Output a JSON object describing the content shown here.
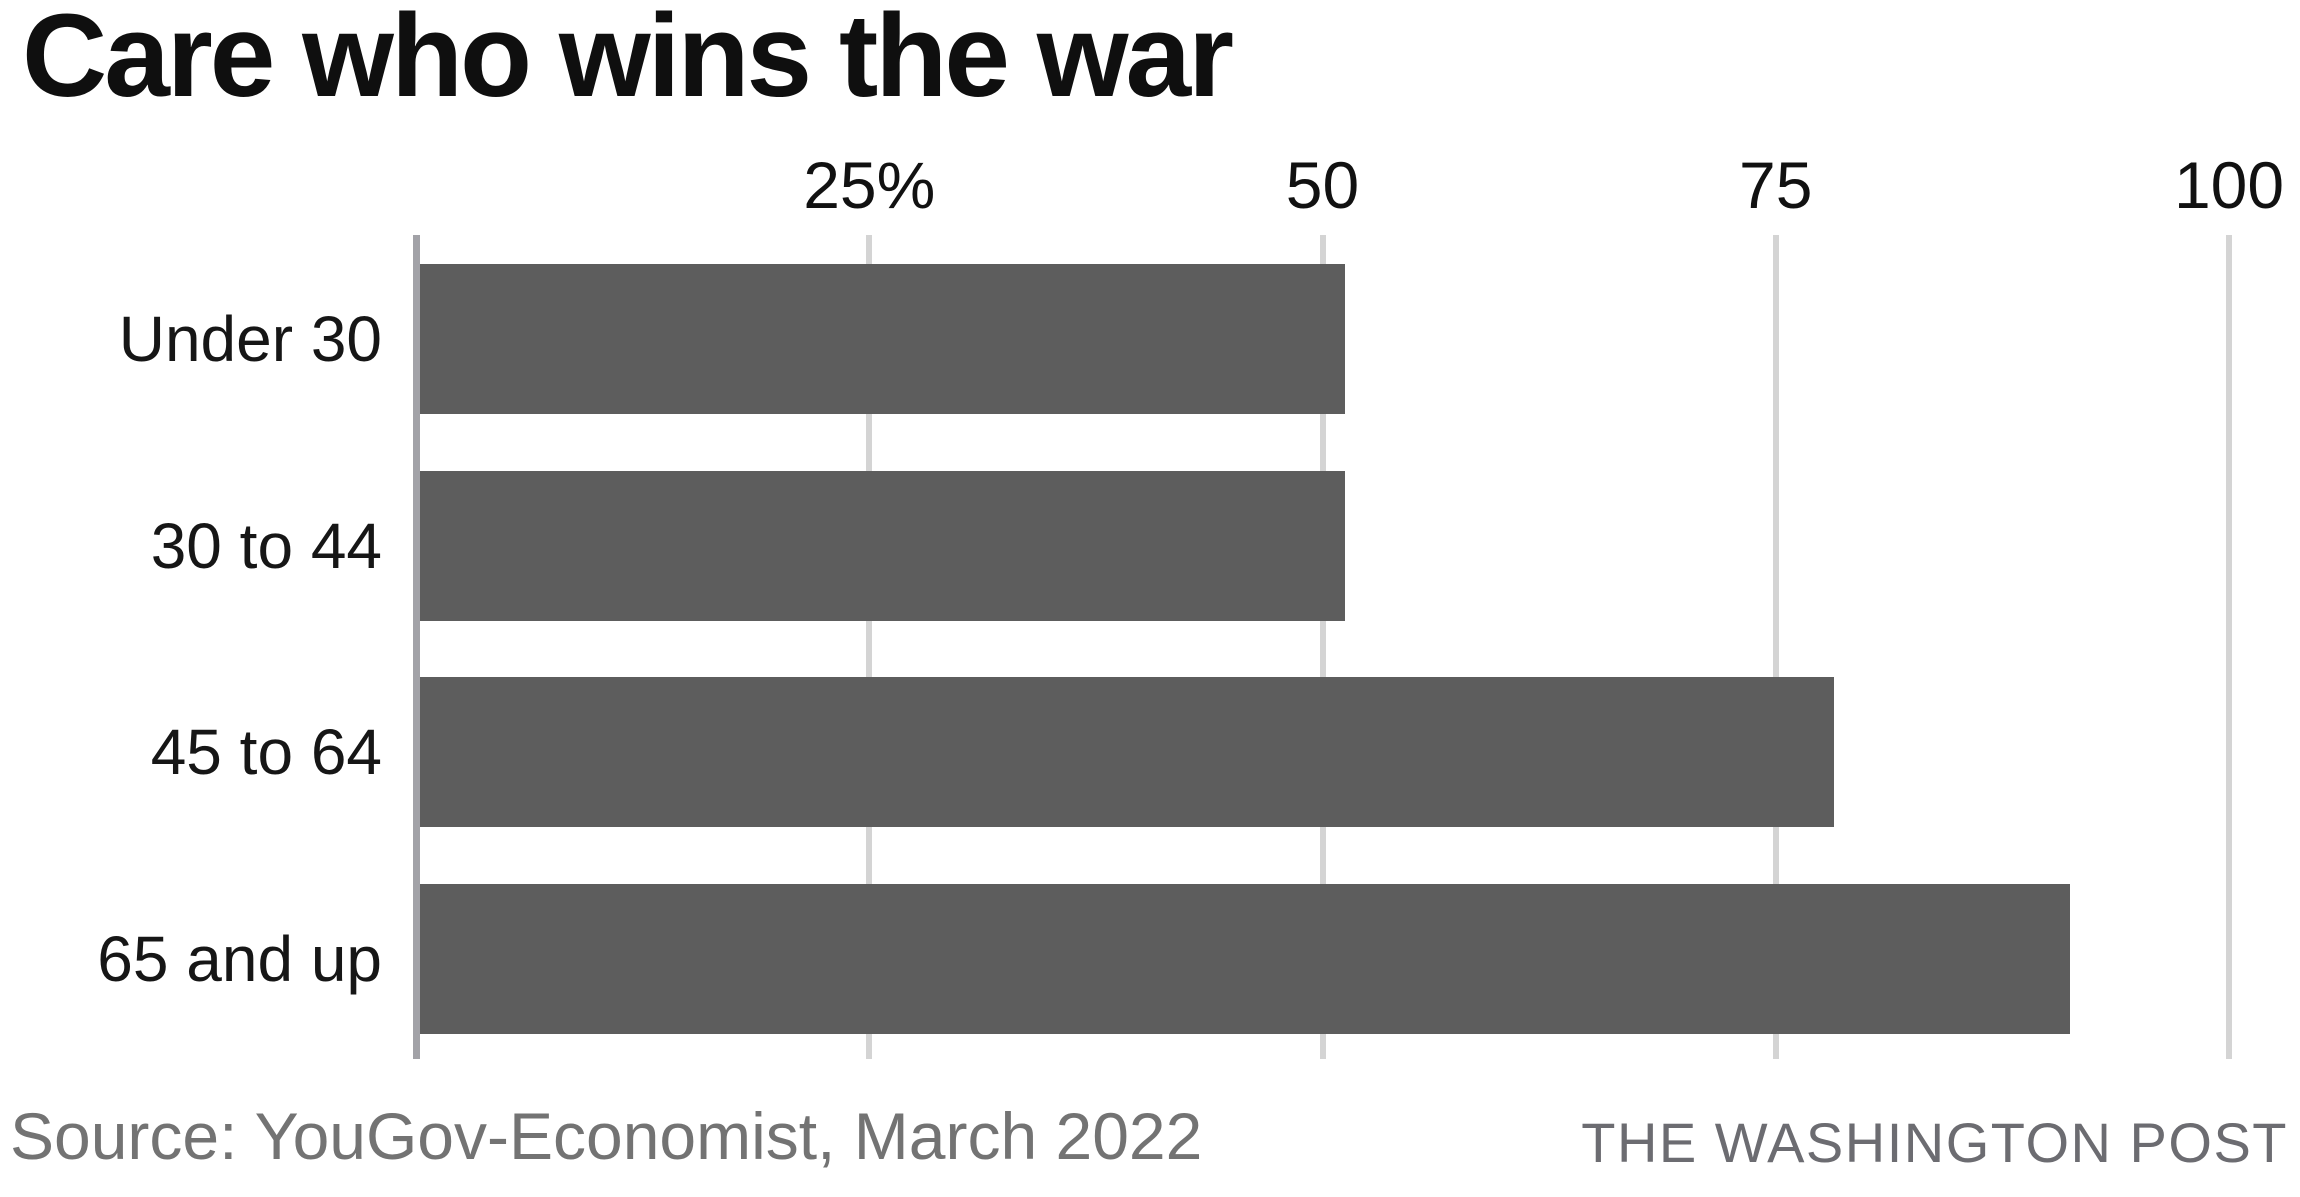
{
  "title": "Care who wins the war",
  "source": "Source: YouGov-Economist, March 2022",
  "attribution": "THE WASHINGTON POST",
  "colors": {
    "bar": "#5d5d5d",
    "axis_line": "#a2a2a7",
    "gridline": "#d4d4d4",
    "title_text": "#0f0f0f",
    "category_text": "#161616",
    "tick_text": "#111111",
    "source_text": "#737373",
    "attribution_text": "#6c6c71"
  },
  "chart_data": {
    "type": "bar",
    "orientation": "horizontal",
    "title": "Care who wins the war",
    "categories": [
      "Under 30",
      "30 to 44",
      "45 to 64",
      "65 and up"
    ],
    "values": [
      51,
      51,
      78,
      91
    ],
    "unit": "percent",
    "xlim": [
      0,
      100
    ],
    "x_ticks": [
      {
        "value": 25,
        "label": "25%"
      },
      {
        "value": 50,
        "label": "50"
      },
      {
        "value": 75,
        "label": "75"
      },
      {
        "value": 100,
        "label": "100"
      }
    ],
    "grid": "vertical gridlines at ticks, drawn behind bars",
    "legend": "none"
  }
}
